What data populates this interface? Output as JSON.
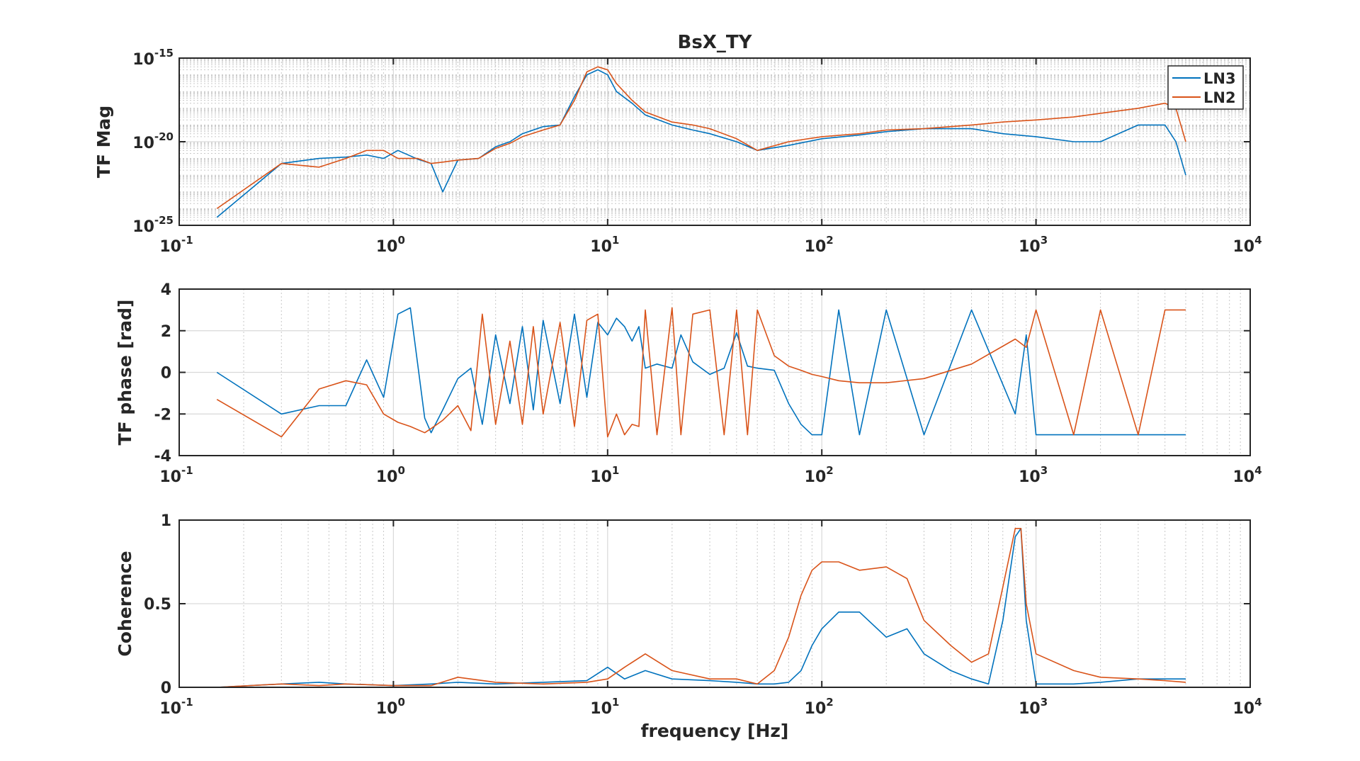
{
  "figure_title": "BsX_TY",
  "colors": {
    "LN3": "#0072BD",
    "LN2": "#D95319",
    "axes": "#262626",
    "grid": "#dfdfdf"
  },
  "chart_data": [
    {
      "type": "line",
      "title": "BsX_TY",
      "xlabel": "",
      "ylabel": "TF Mag",
      "xscale": "log",
      "yscale": "log",
      "xlim": [
        0.1,
        10000
      ],
      "ylim": [
        1e-25,
        1e-15
      ],
      "xticks": [
        0.1,
        1,
        10,
        100,
        1000,
        10000
      ],
      "xtick_labels": [
        {
          "base": "10",
          "exp": "-1"
        },
        {
          "base": "10",
          "exp": "0"
        },
        {
          "base": "10",
          "exp": "1"
        },
        {
          "base": "10",
          "exp": "2"
        },
        {
          "base": "10",
          "exp": "3"
        },
        {
          "base": "10",
          "exp": "4"
        }
      ],
      "yticks": [
        1e-25,
        1e-20,
        1e-15
      ],
      "ytick_labels": [
        {
          "base": "10",
          "exp": "-25"
        },
        {
          "base": "10",
          "exp": "-20"
        },
        {
          "base": "10",
          "exp": "-15"
        }
      ],
      "grid": true,
      "legend": {
        "placement": "top-right",
        "entries": [
          "LN3",
          "LN2"
        ]
      },
      "series": [
        {
          "name": "LN3",
          "x": [
            0.15,
            0.3,
            0.45,
            0.6,
            0.75,
            0.9,
            1.05,
            1.3,
            1.5,
            1.7,
            2,
            2.5,
            3,
            3.5,
            4,
            5,
            6,
            7,
            8,
            9,
            10,
            11,
            13,
            15,
            20,
            25,
            30,
            40,
            50,
            70,
            100,
            150,
            200,
            300,
            500,
            700,
            1000,
            1500,
            2000,
            3000,
            4000,
            4500,
            5000
          ],
          "y": [
            3e-25,
            5e-22,
            1e-21,
            1.2e-21,
            1.6e-21,
            1e-21,
            3e-21,
            9e-22,
            5e-22,
            1e-23,
            8e-22,
            1e-21,
            5e-21,
            1e-20,
            3e-20,
            8e-20,
            1e-19,
            5e-18,
            1e-16,
            2e-16,
            1e-16,
            1e-17,
            2e-18,
            4e-19,
            1e-19,
            5e-20,
            3e-20,
            1e-20,
            3e-21,
            6e-21,
            1.5e-20,
            2.5e-20,
            4e-20,
            6e-20,
            6e-20,
            3e-20,
            2e-20,
            1e-20,
            1e-20,
            1e-19,
            1e-19,
            1e-20,
            1e-22
          ]
        },
        {
          "name": "LN2",
          "x": [
            0.15,
            0.3,
            0.45,
            0.6,
            0.75,
            0.9,
            1.05,
            1.3,
            1.5,
            1.7,
            2,
            2.5,
            3,
            3.5,
            4,
            5,
            6,
            7,
            8,
            9,
            10,
            11,
            13,
            15,
            20,
            25,
            30,
            40,
            50,
            70,
            100,
            150,
            200,
            300,
            500,
            700,
            1000,
            1500,
            2000,
            3000,
            4000,
            4500,
            5000
          ],
          "y": [
            1e-24,
            5e-22,
            3e-22,
            1e-21,
            3e-21,
            3e-21,
            1e-21,
            1e-21,
            5e-22,
            6e-22,
            8e-22,
            1e-21,
            4e-21,
            8e-21,
            2e-20,
            5e-20,
            1e-19,
            3e-18,
            1.5e-16,
            3e-16,
            2e-16,
            3e-17,
            3e-18,
            6e-19,
            1.5e-19,
            1e-19,
            6e-20,
            1.5e-20,
            3e-21,
            1e-20,
            2e-20,
            3e-20,
            5e-20,
            6e-20,
            1e-19,
            1.5e-19,
            2e-19,
            3e-19,
            5e-19,
            1e-18,
            2e-18,
            1e-18,
            1e-20
          ]
        }
      ]
    },
    {
      "type": "line",
      "title": "",
      "xlabel": "",
      "ylabel": "TF phase [rad]",
      "xscale": "log",
      "yscale": "linear",
      "xlim": [
        0.1,
        10000
      ],
      "ylim": [
        -4,
        4
      ],
      "xticks": [
        0.1,
        1,
        10,
        100,
        1000,
        10000
      ],
      "xtick_labels": [
        {
          "base": "10",
          "exp": "-1"
        },
        {
          "base": "10",
          "exp": "0"
        },
        {
          "base": "10",
          "exp": "1"
        },
        {
          "base": "10",
          "exp": "2"
        },
        {
          "base": "10",
          "exp": "3"
        },
        {
          "base": "10",
          "exp": "4"
        }
      ],
      "yticks": [
        -4,
        -2,
        0,
        2,
        4
      ],
      "ytick_labels": [
        "-4",
        "-2",
        "0",
        "2",
        "4"
      ],
      "grid": true,
      "series": [
        {
          "name": "LN3",
          "x": [
            0.15,
            0.3,
            0.45,
            0.6,
            0.75,
            0.9,
            1.05,
            1.2,
            1.4,
            1.5,
            1.7,
            2,
            2.3,
            2.6,
            3,
            3.5,
            4,
            4.5,
            5,
            6,
            7,
            8,
            9,
            10,
            11,
            12,
            13,
            14,
            15,
            17,
            20,
            22,
            25,
            30,
            35,
            40,
            45,
            50,
            60,
            70,
            80,
            90,
            100,
            120,
            150,
            200,
            300,
            500,
            800,
            900,
            1000,
            1500,
            2000,
            3000,
            4000,
            5000
          ],
          "y": [
            0,
            -2,
            -1.6,
            -1.6,
            0.6,
            -1.2,
            2.8,
            3.1,
            -2.2,
            -2.9,
            -1.8,
            -0.3,
            0.2,
            -2.5,
            1.8,
            -1.5,
            2.2,
            -1.8,
            2.5,
            -1.5,
            2.8,
            -1.2,
            2.4,
            1.8,
            2.6,
            2.2,
            1.5,
            2.2,
            0.2,
            0.4,
            0.2,
            1.8,
            0.5,
            -0.1,
            0.2,
            1.9,
            0.3,
            0.2,
            0.1,
            -1.5,
            -2.5,
            -3,
            -3,
            3,
            -3,
            3,
            -3,
            3,
            -2,
            1.8,
            -3,
            -3,
            -3,
            -3,
            -3,
            -3
          ]
        },
        {
          "name": "LN2",
          "x": [
            0.15,
            0.3,
            0.45,
            0.6,
            0.75,
            0.9,
            1.05,
            1.2,
            1.4,
            1.5,
            1.7,
            2,
            2.3,
            2.6,
            3,
            3.5,
            4,
            4.5,
            5,
            6,
            7,
            8,
            9,
            10,
            11,
            12,
            13,
            14,
            15,
            17,
            20,
            22,
            25,
            30,
            35,
            40,
            45,
            50,
            60,
            70,
            80,
            90,
            100,
            120,
            150,
            200,
            300,
            500,
            800,
            900,
            1000,
            1500,
            2000,
            3000,
            4000,
            5000
          ],
          "y": [
            -1.3,
            -3.1,
            -0.8,
            -0.4,
            -0.6,
            -2,
            -2.4,
            -2.6,
            -2.9,
            -2.7,
            -2.3,
            -1.6,
            -2.8,
            2.8,
            -2.5,
            1.5,
            -2.5,
            2.2,
            -2,
            2.4,
            -2.6,
            2.5,
            2.8,
            -3.1,
            -2,
            -3,
            -2.5,
            -2.6,
            3,
            -3,
            3.1,
            -3,
            2.8,
            3,
            -3,
            3,
            -3,
            3,
            0.8,
            0.3,
            0.1,
            -0.1,
            -0.2,
            -0.4,
            -0.5,
            -0.5,
            -0.3,
            0.4,
            1.6,
            1.2,
            3,
            -3,
            3,
            -3,
            3,
            3
          ]
        }
      ]
    },
    {
      "type": "line",
      "title": "",
      "xlabel": "frequency [Hz]",
      "ylabel": "Coherence",
      "xscale": "log",
      "yscale": "linear",
      "xlim": [
        0.1,
        10000
      ],
      "ylim": [
        0,
        1
      ],
      "xticks": [
        0.1,
        1,
        10,
        100,
        1000,
        10000
      ],
      "xtick_labels": [
        {
          "base": "10",
          "exp": "-1"
        },
        {
          "base": "10",
          "exp": "0"
        },
        {
          "base": "10",
          "exp": "1"
        },
        {
          "base": "10",
          "exp": "2"
        },
        {
          "base": "10",
          "exp": "3"
        },
        {
          "base": "10",
          "exp": "4"
        }
      ],
      "yticks": [
        0,
        0.5,
        1
      ],
      "ytick_labels": [
        "0",
        "0.5",
        "1"
      ],
      "grid": true,
      "series": [
        {
          "name": "LN3",
          "x": [
            0.15,
            0.3,
            0.45,
            0.6,
            1,
            1.5,
            2,
            3,
            5,
            8,
            10,
            12,
            15,
            20,
            30,
            40,
            50,
            60,
            70,
            80,
            90,
            100,
            120,
            150,
            200,
            250,
            300,
            400,
            500,
            600,
            700,
            800,
            850,
            900,
            1000,
            1500,
            2000,
            3000,
            4000,
            5000
          ],
          "y": [
            0,
            0.02,
            0.03,
            0.02,
            0.01,
            0.02,
            0.03,
            0.02,
            0.03,
            0.04,
            0.12,
            0.05,
            0.1,
            0.05,
            0.04,
            0.03,
            0.02,
            0.02,
            0.03,
            0.1,
            0.25,
            0.35,
            0.45,
            0.45,
            0.3,
            0.35,
            0.2,
            0.1,
            0.05,
            0.02,
            0.4,
            0.9,
            0.95,
            0.4,
            0.02,
            0.02,
            0.03,
            0.05,
            0.05,
            0.05
          ]
        },
        {
          "name": "LN2",
          "x": [
            0.15,
            0.3,
            0.45,
            0.6,
            1,
            1.5,
            2,
            3,
            5,
            8,
            10,
            12,
            15,
            20,
            30,
            40,
            50,
            60,
            70,
            80,
            90,
            100,
            120,
            150,
            200,
            250,
            300,
            400,
            500,
            600,
            700,
            800,
            850,
            900,
            1000,
            1500,
            2000,
            3000,
            4000,
            5000
          ],
          "y": [
            0,
            0.02,
            0.01,
            0.02,
            0.01,
            0.01,
            0.06,
            0.03,
            0.02,
            0.03,
            0.05,
            0.12,
            0.2,
            0.1,
            0.05,
            0.05,
            0.02,
            0.1,
            0.3,
            0.55,
            0.7,
            0.75,
            0.75,
            0.7,
            0.72,
            0.65,
            0.4,
            0.25,
            0.15,
            0.2,
            0.6,
            0.95,
            0.95,
            0.5,
            0.2,
            0.1,
            0.06,
            0.05,
            0.04,
            0.03
          ]
        }
      ]
    }
  ]
}
